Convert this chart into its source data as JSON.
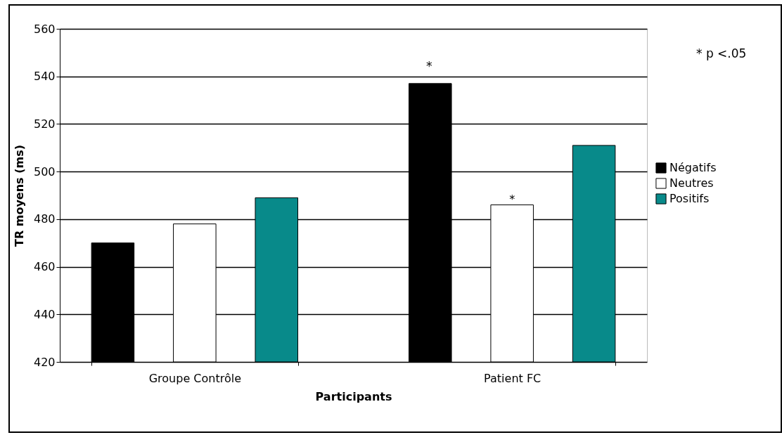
{
  "chart_data": {
    "type": "bar",
    "xlabel": "Participants",
    "ylabel": "TR moyens (ms)",
    "categories": [
      "Groupe Contrôle",
      "Patient FC"
    ],
    "series": [
      {
        "name": "Négatifs",
        "color": "#000000",
        "values": [
          470,
          537
        ]
      },
      {
        "name": "Neutres",
        "color": "#ffffff",
        "values": [
          478,
          486
        ]
      },
      {
        "name": "Positifs",
        "color": "#088a8a",
        "values": [
          489,
          511
        ]
      }
    ],
    "ylim": [
      420,
      560
    ],
    "yticks": [
      420,
      440,
      460,
      480,
      500,
      520,
      540,
      560
    ],
    "grid": "y",
    "legend": "right",
    "annotations": [
      "*",
      {
        "text": "*",
        "x": "Patient FC",
        "y": 486
      },
      "* p <.05"
    ]
  }
}
